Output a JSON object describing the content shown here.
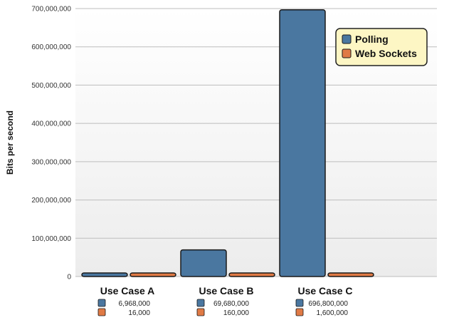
{
  "chart_data": {
    "type": "bar",
    "title": "",
    "xlabel": "",
    "ylabel": "Bits per second",
    "ylim": [
      0,
      700000000
    ],
    "yticks": [
      0,
      100000000,
      200000000,
      300000000,
      400000000,
      500000000,
      600000000,
      700000000
    ],
    "ytick_labels": [
      "0",
      "100,000,000",
      "200,000,000",
      "300,000,000",
      "400,000,000",
      "500,000,000",
      "600,000,000",
      "700,000,000"
    ],
    "grid": true,
    "legend_position": "top-right",
    "categories": [
      "Use Case A",
      "Use Case B",
      "Use Case C"
    ],
    "series": [
      {
        "name": "Polling",
        "color": "#4a77a0",
        "values": [
          6968000,
          69680000,
          696800000
        ],
        "value_labels": [
          "6,968,000",
          "69,680,000",
          "696,800,000"
        ]
      },
      {
        "name": "Web Sockets",
        "color": "#e07a45",
        "values": [
          16000,
          160000,
          1600000
        ],
        "value_labels": [
          "16,000",
          "160,000",
          "1,600,000"
        ]
      }
    ]
  },
  "colors": {
    "legend_background": "#fdf6c4",
    "legend_border": "#222222",
    "bar_outline": "#1a1a1a",
    "gridline": "#bdbdbd"
  }
}
